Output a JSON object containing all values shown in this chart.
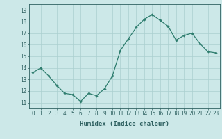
{
  "x": [
    0,
    1,
    2,
    3,
    4,
    5,
    6,
    7,
    8,
    9,
    10,
    11,
    12,
    13,
    14,
    15,
    16,
    17,
    18,
    19,
    20,
    21,
    22,
    23
  ],
  "y": [
    13.6,
    14.0,
    13.3,
    12.5,
    11.8,
    11.7,
    11.1,
    11.8,
    11.6,
    12.2,
    13.3,
    15.5,
    16.5,
    17.5,
    18.2,
    18.6,
    18.1,
    17.6,
    16.4,
    16.8,
    17.0,
    16.1,
    15.4,
    15.3
  ],
  "line_color": "#2e7d6e",
  "marker": "D",
  "marker_size": 1.8,
  "line_width": 0.9,
  "background_color": "#cce8e8",
  "grid_color": "#aacfcf",
  "xlabel": "Humidex (Indice chaleur)",
  "xlabel_fontsize": 6.5,
  "ylabel": "",
  "title": "",
  "xlim": [
    -0.5,
    23.5
  ],
  "ylim": [
    10.5,
    19.5
  ],
  "yticks": [
    11,
    12,
    13,
    14,
    15,
    16,
    17,
    18,
    19
  ],
  "xticks": [
    0,
    1,
    2,
    3,
    4,
    5,
    6,
    7,
    8,
    9,
    10,
    11,
    12,
    13,
    14,
    15,
    16,
    17,
    18,
    19,
    20,
    21,
    22,
    23
  ],
  "tick_fontsize": 5.5,
  "tick_color": "#2e6060",
  "axis_color": "#2e6060",
  "font_family": "monospace"
}
